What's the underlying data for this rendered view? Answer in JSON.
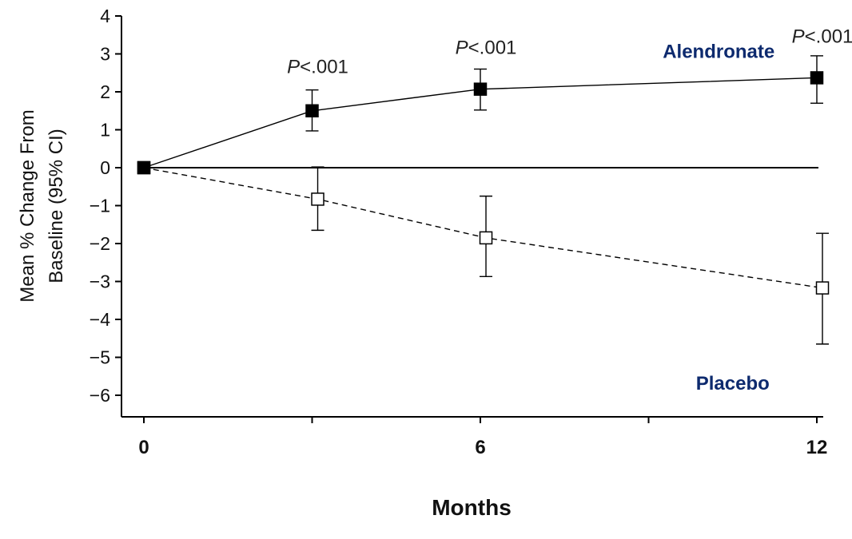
{
  "chart_data": {
    "type": "line",
    "title": "",
    "xlabel": "Months",
    "ylabel_line1": "Mean % Change From",
    "ylabel_line2": "Baseline (95% CI)",
    "xlim": [
      0,
      12
    ],
    "ylim": [
      -6.5,
      4
    ],
    "x_ticks": [
      0,
      6,
      12
    ],
    "x_minor_ticks": [
      3,
      9
    ],
    "y_ticks": [
      4,
      3,
      2,
      1,
      0,
      -1,
      -2,
      -3,
      -4,
      -5,
      -6
    ],
    "y_tick_labels": [
      "4",
      "3",
      "2",
      "1",
      "0",
      "−1",
      "−2",
      "−3",
      "−4",
      "−5",
      "−6"
    ],
    "grid": false,
    "reference_line_y": 0,
    "series": [
      {
        "name": "Alendronate",
        "marker": "filled-square",
        "line_style": "solid",
        "color": "#000000",
        "label_color": "#0d2a6e",
        "x": [
          0,
          3,
          6,
          12
        ],
        "y": [
          0,
          1.5,
          2.07,
          2.37
        ],
        "ci_low": [
          null,
          0.97,
          1.52,
          1.7
        ],
        "ci_high": [
          null,
          2.05,
          2.6,
          2.95
        ]
      },
      {
        "name": "Placebo",
        "marker": "open-square",
        "line_style": "dashed",
        "color": "#000000",
        "label_color": "#0d2a6e",
        "x": [
          0,
          3.1,
          6.1,
          12.1
        ],
        "y": [
          0,
          -0.83,
          -1.85,
          -3.17
        ],
        "ci_low": [
          null,
          -1.65,
          -2.87,
          -4.65
        ],
        "ci_high": [
          null,
          0.02,
          -0.75,
          -1.73
        ]
      }
    ],
    "annotations": [
      {
        "italic": "P",
        "text": "<.001",
        "x": 3.1,
        "y": 2.5
      },
      {
        "italic": "P",
        "text": "<.001",
        "x": 6.1,
        "y": 3.0
      },
      {
        "italic": "P",
        "text": "<.001",
        "x": 12.1,
        "y": 3.3
      }
    ]
  }
}
